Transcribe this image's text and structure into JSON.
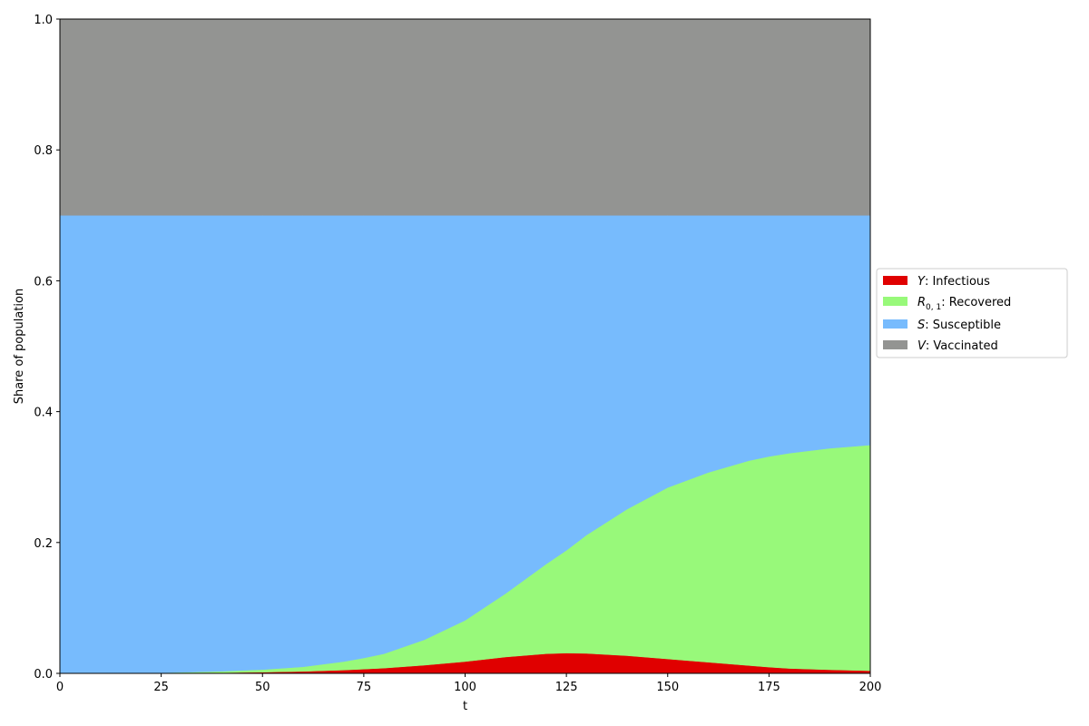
{
  "chart_data": {
    "type": "area",
    "stacked": true,
    "title": "",
    "xlabel": "t",
    "ylabel": "Share of population",
    "xlim": [
      0,
      200
    ],
    "ylim": [
      0,
      1
    ],
    "x_ticks": [
      0,
      25,
      50,
      75,
      100,
      125,
      150,
      175,
      200
    ],
    "x_tick_labels": [
      "0",
      "25",
      "50",
      "75",
      "100",
      "125",
      "150",
      "175",
      "200"
    ],
    "y_ticks": [
      0,
      0.2,
      0.4,
      0.6,
      0.8,
      1.0
    ],
    "y_tick_labels": [
      "0.0",
      "0.2",
      "0.4",
      "0.6",
      "0.8",
      "1.0"
    ],
    "grid": false,
    "legend_position": "outside-right",
    "x": [
      0,
      10,
      20,
      25,
      30,
      40,
      50,
      60,
      70,
      75,
      80,
      90,
      100,
      110,
      120,
      125,
      130,
      140,
      150,
      160,
      170,
      175,
      180,
      190,
      200
    ],
    "series": [
      {
        "name": "Y: Infectious",
        "legend_symbol": "Y",
        "legend_subscript": "",
        "legend_text": ": Infectious",
        "color": "#e00000",
        "values": [
          0.0,
          0.0001,
          0.0002,
          0.0003,
          0.0005,
          0.001,
          0.0018,
          0.003,
          0.005,
          0.0065,
          0.008,
          0.0125,
          0.018,
          0.025,
          0.03,
          0.031,
          0.0305,
          0.027,
          0.022,
          0.017,
          0.012,
          0.0095,
          0.0075,
          0.0055,
          0.004
        ]
      },
      {
        "name": "R0,1: Recovered",
        "legend_symbol": "R",
        "legend_subscript": "0, 1",
        "legend_text": ": Recovered",
        "color": "#98f97a",
        "values": [
          0.0,
          0.0002,
          0.0004,
          0.0007,
          0.001,
          0.0022,
          0.004,
          0.007,
          0.013,
          0.017,
          0.022,
          0.039,
          0.063,
          0.097,
          0.137,
          0.157,
          0.181,
          0.224,
          0.262,
          0.29,
          0.313,
          0.322,
          0.329,
          0.3385,
          0.345
        ]
      },
      {
        "name": "S: Susceptible",
        "legend_symbol": "S",
        "legend_subscript": "",
        "legend_text": ": Susceptible",
        "color": "#77bbfd",
        "values": [
          0.7,
          0.6997,
          0.6994,
          0.699,
          0.6985,
          0.6968,
          0.6942,
          0.69,
          0.682,
          0.6765,
          0.67,
          0.6485,
          0.619,
          0.578,
          0.533,
          0.512,
          0.4885,
          0.449,
          0.416,
          0.393,
          0.375,
          0.3685,
          0.3635,
          0.356,
          0.351
        ]
      },
      {
        "name": "V: Vaccinated",
        "legend_symbol": "V",
        "legend_subscript": "",
        "legend_text": ": Vaccinated",
        "color": "#939492",
        "values": [
          0.3,
          0.3,
          0.3,
          0.3,
          0.3,
          0.3,
          0.3,
          0.3,
          0.3,
          0.3,
          0.3,
          0.3,
          0.3,
          0.3,
          0.3,
          0.3,
          0.3,
          0.3,
          0.3,
          0.3,
          0.3,
          0.3,
          0.3,
          0.3,
          0.3
        ]
      }
    ]
  }
}
